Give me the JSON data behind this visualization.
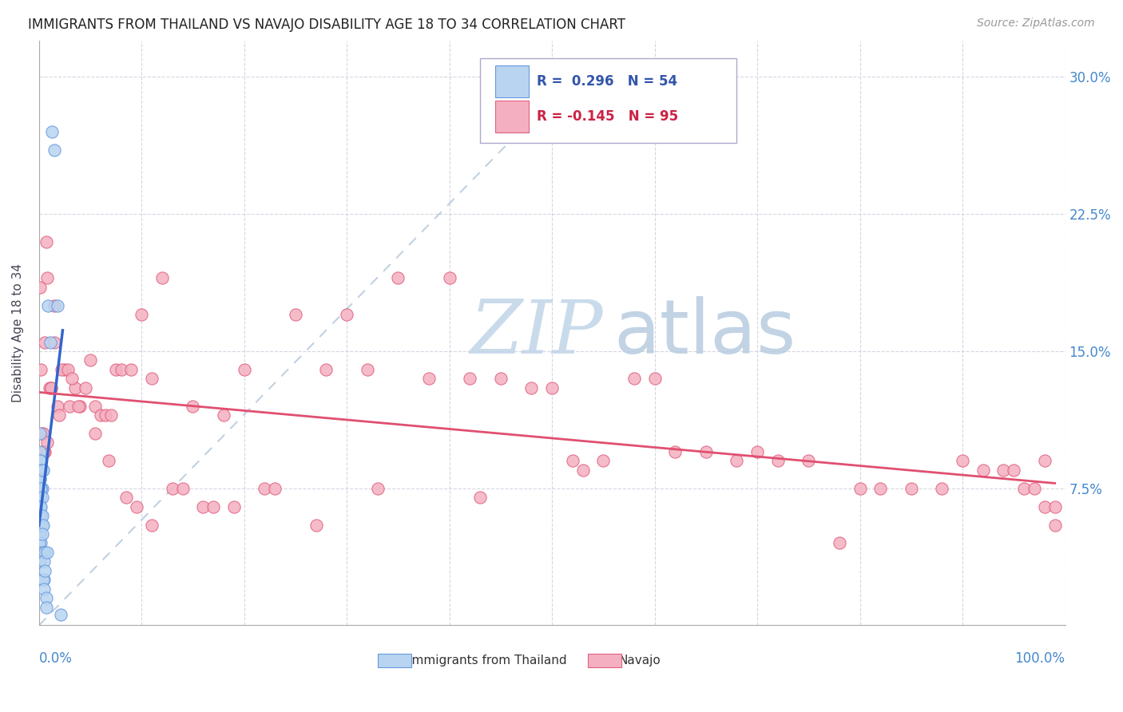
{
  "title": "IMMIGRANTS FROM THAILAND VS NAVAJO DISABILITY AGE 18 TO 34 CORRELATION CHART",
  "source": "Source: ZipAtlas.com",
  "ylabel": "Disability Age 18 to 34",
  "legend_label1": "Immigrants from Thailand",
  "legend_label2": "Navajo",
  "r1": 0.296,
  "n1": 54,
  "r2": -0.145,
  "n2": 95,
  "xlim": [
    0.0,
    1.0
  ],
  "ylim": [
    0.0,
    0.32
  ],
  "yticks": [
    0.0,
    0.075,
    0.15,
    0.225,
    0.3
  ],
  "ytick_labels": [
    "",
    "7.5%",
    "15.0%",
    "22.5%",
    "30.0%"
  ],
  "color_blue_fill": "#B8D4F0",
  "color_blue_edge": "#6699DD",
  "color_pink_fill": "#F4B0C0",
  "color_pink_edge": "#E06080",
  "color_blue_line": "#3366CC",
  "color_pink_line": "#E05070",
  "color_diag": "#BBCCDD",
  "blue_scatter_x": [
    0.001,
    0.002,
    0.001,
    0.003,
    0.001,
    0.002,
    0.001,
    0.0,
    0.0,
    0.0,
    0.0,
    0.001,
    0.001,
    0.002,
    0.001,
    0.003,
    0.002,
    0.001,
    0.0,
    0.001,
    0.0,
    0.0,
    0.0,
    0.001,
    0.001,
    0.001,
    0.002,
    0.001,
    0.002,
    0.003,
    0.001,
    0.002,
    0.003,
    0.004,
    0.002,
    0.003,
    0.004,
    0.003,
    0.004,
    0.005,
    0.004,
    0.005,
    0.006,
    0.005,
    0.006,
    0.007,
    0.007,
    0.008,
    0.009,
    0.011,
    0.013,
    0.015,
    0.018,
    0.021
  ],
  "blue_scatter_y": [
    0.105,
    0.085,
    0.08,
    0.075,
    0.095,
    0.07,
    0.065,
    0.09,
    0.055,
    0.05,
    0.05,
    0.055,
    0.05,
    0.045,
    0.09,
    0.085,
    0.075,
    0.07,
    0.065,
    0.06,
    0.055,
    0.045,
    0.04,
    0.035,
    0.09,
    0.085,
    0.06,
    0.08,
    0.075,
    0.07,
    0.065,
    0.06,
    0.055,
    0.085,
    0.065,
    0.06,
    0.055,
    0.05,
    0.04,
    0.025,
    0.025,
    0.02,
    0.04,
    0.035,
    0.03,
    0.015,
    0.01,
    0.04,
    0.175,
    0.155,
    0.27,
    0.26,
    0.175,
    0.006
  ],
  "pink_scatter_x": [
    0.001,
    0.002,
    0.003,
    0.003,
    0.004,
    0.004,
    0.005,
    0.006,
    0.007,
    0.008,
    0.01,
    0.012,
    0.015,
    0.018,
    0.02,
    0.025,
    0.03,
    0.035,
    0.04,
    0.045,
    0.05,
    0.055,
    0.06,
    0.065,
    0.07,
    0.075,
    0.08,
    0.09,
    0.1,
    0.11,
    0.12,
    0.13,
    0.15,
    0.16,
    0.18,
    0.2,
    0.22,
    0.25,
    0.28,
    0.3,
    0.32,
    0.35,
    0.38,
    0.4,
    0.42,
    0.45,
    0.48,
    0.5,
    0.52,
    0.55,
    0.58,
    0.6,
    0.62,
    0.65,
    0.68,
    0.7,
    0.72,
    0.75,
    0.78,
    0.8,
    0.82,
    0.85,
    0.88,
    0.9,
    0.92,
    0.94,
    0.95,
    0.96,
    0.97,
    0.98,
    0.99,
    0.99,
    0.98,
    0.005,
    0.008,
    0.012,
    0.006,
    0.015,
    0.022,
    0.028,
    0.032,
    0.038,
    0.055,
    0.068,
    0.085,
    0.095,
    0.11,
    0.14,
    0.17,
    0.19,
    0.23,
    0.27,
    0.33,
    0.43,
    0.53
  ],
  "pink_scatter_y": [
    0.185,
    0.14,
    0.095,
    0.105,
    0.095,
    0.105,
    0.095,
    0.095,
    0.21,
    0.19,
    0.13,
    0.13,
    0.175,
    0.12,
    0.115,
    0.14,
    0.12,
    0.13,
    0.12,
    0.13,
    0.145,
    0.12,
    0.115,
    0.115,
    0.115,
    0.14,
    0.14,
    0.14,
    0.17,
    0.135,
    0.19,
    0.075,
    0.12,
    0.065,
    0.115,
    0.14,
    0.075,
    0.17,
    0.14,
    0.17,
    0.14,
    0.19,
    0.135,
    0.19,
    0.135,
    0.135,
    0.13,
    0.13,
    0.09,
    0.09,
    0.135,
    0.135,
    0.095,
    0.095,
    0.09,
    0.095,
    0.09,
    0.09,
    0.045,
    0.075,
    0.075,
    0.075,
    0.075,
    0.09,
    0.085,
    0.085,
    0.085,
    0.075,
    0.075,
    0.065,
    0.065,
    0.055,
    0.09,
    0.095,
    0.1,
    0.13,
    0.155,
    0.155,
    0.14,
    0.14,
    0.135,
    0.12,
    0.105,
    0.09,
    0.07,
    0.065,
    0.055,
    0.075,
    0.065,
    0.065,
    0.075,
    0.055,
    0.075,
    0.07,
    0.085
  ]
}
